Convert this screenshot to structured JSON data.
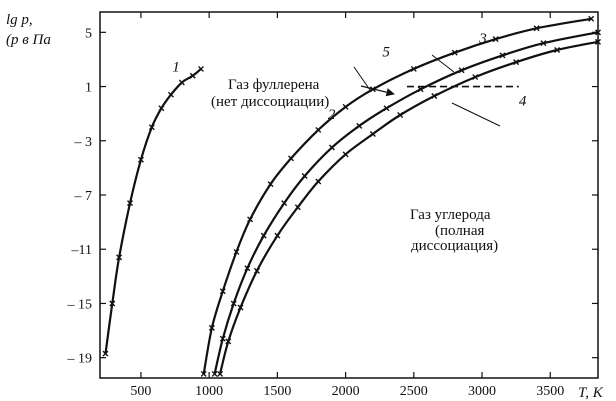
{
  "chart_data": {
    "type": "line",
    "title": "",
    "ylabel_line1": "lg p,",
    "ylabel_line2": "(p в Па",
    "xlabel": "T, K",
    "xlim": [
      200,
      3850
    ],
    "ylim": [
      -20.5,
      6.5
    ],
    "grid": false,
    "x_ticks": [
      500,
      1000,
      1500,
      2000,
      2500,
      3000,
      3500
    ],
    "y_ticks": [
      5,
      1,
      -3,
      -7,
      -11,
      -15,
      -19
    ],
    "y_tick_labels": [
      "5",
      "1",
      "– 3",
      "– 7",
      "–11",
      "– 15",
      "– 19"
    ],
    "series": [
      {
        "name": "1",
        "points": [
          [
            240,
            -18.7
          ],
          [
            290,
            -15
          ],
          [
            340,
            -11.6
          ],
          [
            420,
            -7.6
          ],
          [
            500,
            -4.4
          ],
          [
            580,
            -2
          ],
          [
            650,
            -0.6
          ],
          [
            720,
            0.4
          ],
          [
            800,
            1.3
          ],
          [
            880,
            1.8
          ],
          [
            940,
            2.3
          ]
        ]
      },
      {
        "name": "2",
        "points": [
          [
            960,
            -20.2
          ],
          [
            1020,
            -16.8
          ],
          [
            1100,
            -14.1
          ],
          [
            1200,
            -11.2
          ],
          [
            1300,
            -8.8
          ],
          [
            1450,
            -6.2
          ],
          [
            1600,
            -4.3
          ],
          [
            1800,
            -2.2
          ],
          [
            2000,
            -0.5
          ],
          [
            2200,
            0.8
          ],
          [
            2500,
            2.3
          ],
          [
            2800,
            3.5
          ],
          [
            3100,
            4.5
          ],
          [
            3400,
            5.3
          ],
          [
            3800,
            6.0
          ]
        ]
      },
      {
        "name": "3",
        "points": [
          [
            1040,
            -20.2
          ],
          [
            1100,
            -17.6
          ],
          [
            1180,
            -15
          ],
          [
            1280,
            -12.4
          ],
          [
            1400,
            -10
          ],
          [
            1550,
            -7.6
          ],
          [
            1700,
            -5.6
          ],
          [
            1900,
            -3.5
          ],
          [
            2100,
            -1.9
          ],
          [
            2300,
            -0.6
          ],
          [
            2550,
            0.8
          ],
          [
            2850,
            2.2
          ],
          [
            3150,
            3.3
          ],
          [
            3450,
            4.2
          ],
          [
            3850,
            5.0
          ]
        ]
      },
      {
        "name": "4",
        "points": [
          [
            1080,
            -20.2
          ],
          [
            1140,
            -17.8
          ],
          [
            1230,
            -15.3
          ],
          [
            1350,
            -12.6
          ],
          [
            1500,
            -10
          ],
          [
            1650,
            -7.9
          ],
          [
            1800,
            -6
          ],
          [
            2000,
            -4
          ],
          [
            2200,
            -2.5
          ],
          [
            2400,
            -1.1
          ],
          [
            2650,
            0.3
          ],
          [
            2950,
            1.7
          ],
          [
            3250,
            2.8
          ],
          [
            3550,
            3.7
          ],
          [
            3850,
            4.3
          ]
        ]
      }
    ],
    "dashed_line": {
      "name": "5",
      "x_start": 2450,
      "x_end": 3270,
      "y": 1
    },
    "series_labels": [
      {
        "text": "1",
        "x": 730,
        "y": 2.1
      },
      {
        "text": "2",
        "x": 1870,
        "y": -1.4
      },
      {
        "text": "3",
        "x": 2980,
        "y": 4.2
      },
      {
        "text": "4",
        "x": 3270,
        "y": -0.4
      },
      {
        "text": "5",
        "x": 2270,
        "y": 3.2
      }
    ],
    "annotations": {
      "fullerene_line1": "Газ фуллерена",
      "fullerene_line2": "(нет диссоциации)",
      "carbon_line1": "Газ углерода",
      "carbon_line2": "(полная",
      "carbon_line3": "диссоциация)"
    },
    "colors": {
      "line": "#111111",
      "background": "#ffffff"
    }
  }
}
